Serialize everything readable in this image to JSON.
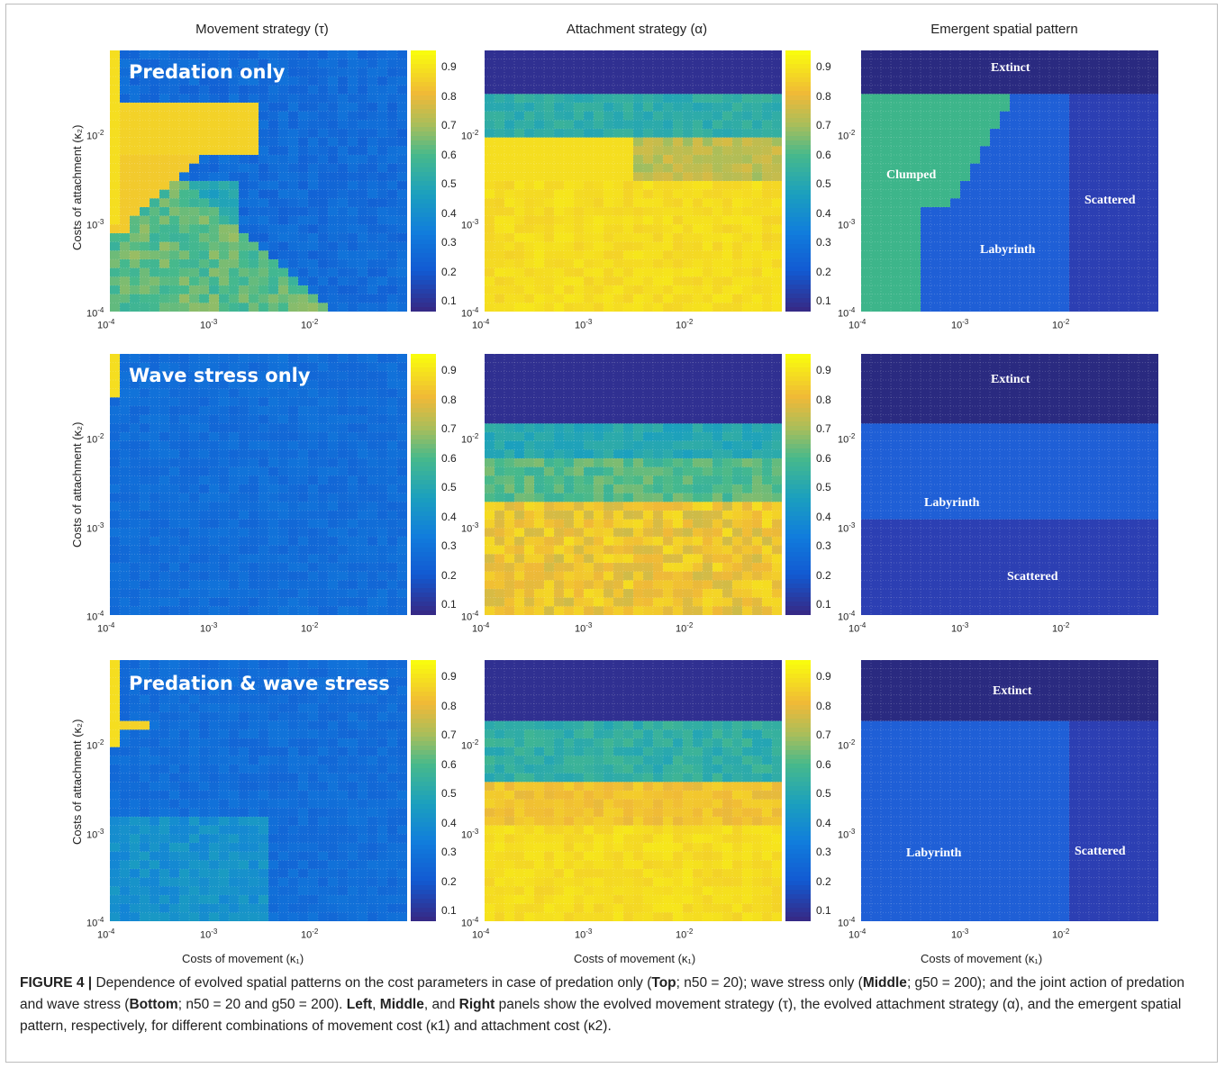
{
  "column_titles": [
    "Movement strategy (τ)",
    "Attachment strategy (α)",
    "Emergent spatial pattern"
  ],
  "row_titles": [
    "Predation only",
    "Wave stress only",
    "Predation & wave stress"
  ],
  "axes": {
    "ylabel": "Costs of attachment (κ₂)",
    "xlabel": "Costs of movement (κ₁)",
    "ticks": [
      "10",
      "-4",
      "10",
      "-3",
      "10",
      "-2"
    ]
  },
  "colorbar_ticks": [
    "0.9",
    "0.8",
    "0.7",
    "0.6",
    "0.5",
    "0.4",
    "0.3",
    "0.2",
    "0.1"
  ],
  "region_labels": {
    "top": [
      "Extinct",
      "Clumped",
      "Scattered",
      "Labyrinth"
    ],
    "middle": [
      "Extinct",
      "Labyrinth",
      "Scattered"
    ],
    "bottom": [
      "Extinct",
      "Labyrinth",
      "Scattered"
    ]
  },
  "caption": {
    "figure_label": "FIGURE 4 |",
    "text_1": " Dependence of evolved spatial patterns on the cost parameters in case of predation only (",
    "top": "Top",
    "text_2": "; n50 = 20); wave stress only (",
    "middle": "Middle",
    "text_3": "; g50 = 200); and the joint action of predation and wave stress (",
    "bottom": "Bottom",
    "text_4": "; n50 = 20 and g50 = 200). ",
    "left_word": "Left",
    "text_5": ", ",
    "middle_word": "Middle",
    "text_6": ", and ",
    "right_word": "Right",
    "text_7": " panels show the evolved movement strategy (τ), the evolved attachment strategy (α), and the emergent spatial pattern, respectively, for different combinations of movement cost (κ1) and attachment cost (κ2)."
  },
  "colors": {
    "viridis_low": "#352a87",
    "viridis_high": "#f9fb0e",
    "extinct": "#2a2a80",
    "labyrinth": "#1f5fd6",
    "scattered": "#2c3fb3",
    "clumped": "#3db58a"
  }
}
